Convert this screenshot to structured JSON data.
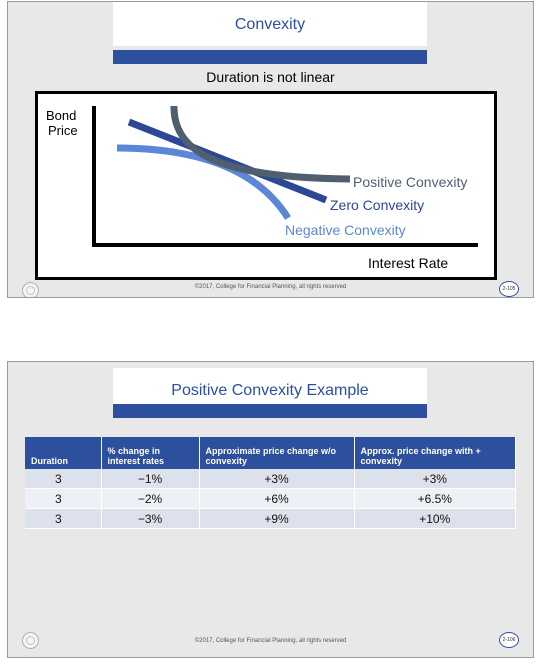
{
  "slides": [
    {
      "title": "Convexity",
      "subtitle": "Duration is not linear",
      "footer": "©2017, College for Financial Planning, all rights reserved",
      "page": "2-105",
      "chart": {
        "y_label_line1": "Bond",
        "y_label_line2": "Price",
        "x_label": "Interest Rate",
        "labels": {
          "positive": "Positive Convexity",
          "zero": "Zero Convexity",
          "negative": "Negative Convexity"
        },
        "colors": {
          "positive": "#4f5f70",
          "zero": "#2b4796",
          "negative": "#5b87d6"
        }
      }
    },
    {
      "title": "Positive Convexity Example",
      "footer": "©2017, College for Financial Planning, all rights reserved",
      "page": "2-106",
      "table": {
        "headers": [
          "Duration",
          "% change in interest rates",
          "Approximate price change w/o convexity",
          "Approx. price change with + convexity"
        ],
        "rows": [
          [
            "3",
            "−1%",
            "+3%",
            "+3%"
          ],
          [
            "3",
            "−2%",
            "+6%",
            "+6.5%"
          ],
          [
            "3",
            "−3%",
            "+9%",
            "+10%"
          ]
        ]
      }
    }
  ]
}
